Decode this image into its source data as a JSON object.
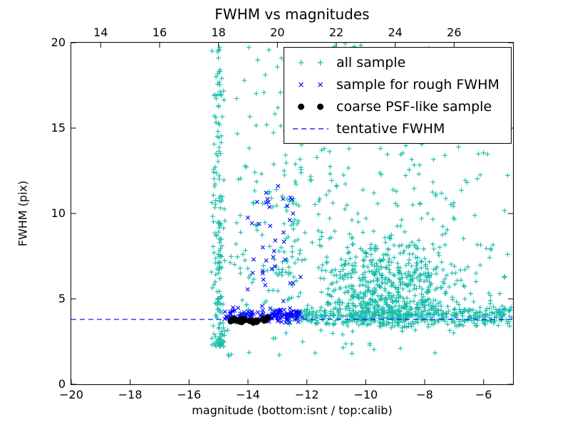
{
  "chart_data": {
    "type": "scatter",
    "title": "FWHM vs magnitudes",
    "xlabel": "magnitude (bottom:isnt / top:calib)",
    "ylabel": "FWHM (pix)",
    "axes": {
      "xlim_bottom": [
        -20,
        -5
      ],
      "xlim_top": [
        13,
        28
      ],
      "ylim": [
        0,
        20
      ],
      "grid": false,
      "bottom_ticks": [
        {
          "v": -20,
          "label": "−20"
        },
        {
          "v": -18,
          "label": "−18"
        },
        {
          "v": -16,
          "label": "−16"
        },
        {
          "v": -14,
          "label": "−14"
        },
        {
          "v": -12,
          "label": "−12"
        },
        {
          "v": -10,
          "label": "−10"
        },
        {
          "v": -8,
          "label": "−8"
        },
        {
          "v": -6,
          "label": "−6"
        }
      ],
      "top_ticks": [
        {
          "v": 14,
          "label": "14"
        },
        {
          "v": 16,
          "label": "16"
        },
        {
          "v": 18,
          "label": "18"
        },
        {
          "v": 20,
          "label": "20"
        },
        {
          "v": 22,
          "label": "22"
        },
        {
          "v": 24,
          "label": "24"
        },
        {
          "v": 26,
          "label": "26"
        }
      ],
      "y_ticks": [
        {
          "v": 0,
          "label": "0"
        },
        {
          "v": 5,
          "label": "5"
        },
        {
          "v": 10,
          "label": "10"
        },
        {
          "v": 15,
          "label": "15"
        },
        {
          "v": 20,
          "label": "20"
        }
      ]
    },
    "tentative_fwhm": 3.8,
    "legend": {
      "position": "upper right",
      "entries": [
        {
          "label": "all sample",
          "marker": "plus",
          "color": "#16bcab"
        },
        {
          "label": "sample for rough FWHM",
          "marker": "cross",
          "color": "#0000ff"
        },
        {
          "label": "coarse PSF-like sample",
          "marker": "dot",
          "color": "#000000"
        },
        {
          "label": "tentative FWHM",
          "marker": "dashed-line",
          "color": "#0000ff"
        }
      ]
    },
    "seed": 42,
    "series": [
      {
        "name": "all sample",
        "marker": "plus",
        "color": "#16bcab",
        "clusters": [
          {
            "count": 180,
            "x": {
              "dist": "normal",
              "mu": -15.0,
              "sigma": 0.11,
              "clip": [
                -15.35,
                -14.68
              ]
            },
            "y": {
              "dist": "pow",
              "min": 2.2,
              "range": 17.6,
              "exp": 1.7
            }
          },
          {
            "count": 75,
            "x": {
              "dist": "uniform",
              "min": -14.68,
              "max": -12.2
            },
            "y": {
              "dist": "pow",
              "min": 4.2,
              "range": 15.6,
              "exp": 1.25
            }
          },
          {
            "count": 55,
            "x": {
              "dist": "normal",
              "mu": -12.5,
              "sigma": 0.28,
              "clip": [
                -13.2,
                -11.9
              ]
            },
            "y": {
              "dist": "pow",
              "min": 4.5,
              "range": 15.3,
              "exp": 1.0
            }
          },
          {
            "count": 520,
            "x": {
              "dist": "normal",
              "mu": -9.3,
              "sigma": 1.15,
              "clip": [
                -11.6,
                -6.2
              ]
            },
            "y": {
              "dist": "normal",
              "mu": 5.4,
              "sigma": 1.5,
              "clip": [
                3.3,
                10.5
              ]
            }
          },
          {
            "count": 270,
            "x": {
              "dist": "uniform",
              "min": -11.9,
              "max": -5.1
            },
            "y": {
              "dist": "pow",
              "min": 4.0,
              "range": 16.0,
              "exp": 1.6
            }
          },
          {
            "count": 430,
            "x": {
              "dist": "uniform",
              "min": -12.7,
              "max": -5.05
            },
            "y": {
              "dist": "normal",
              "mu": 4.0,
              "sigma": 0.3,
              "clip": [
                3.4,
                5.1
              ]
            }
          },
          {
            "count": 28,
            "x": {
              "dist": "uniform",
              "min": -15.1,
              "max": -7.0
            },
            "y": {
              "dist": "uniform",
              "min": 1.6,
              "max": 3.2
            }
          },
          {
            "count": 40,
            "x": {
              "dist": "uniform",
              "min": -14.6,
              "max": -12.3
            },
            "y": {
              "dist": "normal",
              "mu": 8.5,
              "sigma": 1.6,
              "clip": [
                5.0,
                13.0
              ]
            }
          }
        ]
      },
      {
        "name": "sample for rough FWHM",
        "marker": "cross",
        "color": "#0000ff",
        "clusters": [
          {
            "count": 150,
            "x": {
              "dist": "uniform",
              "min": -14.8,
              "max": -12.15
            },
            "y": {
              "dist": "normal",
              "mu": 4.0,
              "sigma": 0.22,
              "clip": [
                3.6,
                4.9
              ]
            }
          },
          {
            "count": 38,
            "x": {
              "dist": "normal",
              "mu": -13.1,
              "sigma": 0.55,
              "clip": [
                -14.4,
                -12.2
              ]
            },
            "y": {
              "dist": "pow",
              "min": 4.6,
              "range": 7.3,
              "exp": 1.1
            }
          }
        ]
      },
      {
        "name": "coarse PSF-like sample",
        "marker": "dot",
        "color": "#000000",
        "clusters": [
          {
            "count": 28,
            "x": {
              "dist": "uniform",
              "min": -14.62,
              "max": -13.25
            },
            "y": {
              "dist": "normal",
              "mu": 3.74,
              "sigma": 0.07,
              "clip": [
                3.55,
                3.95
              ]
            }
          }
        ]
      }
    ]
  }
}
